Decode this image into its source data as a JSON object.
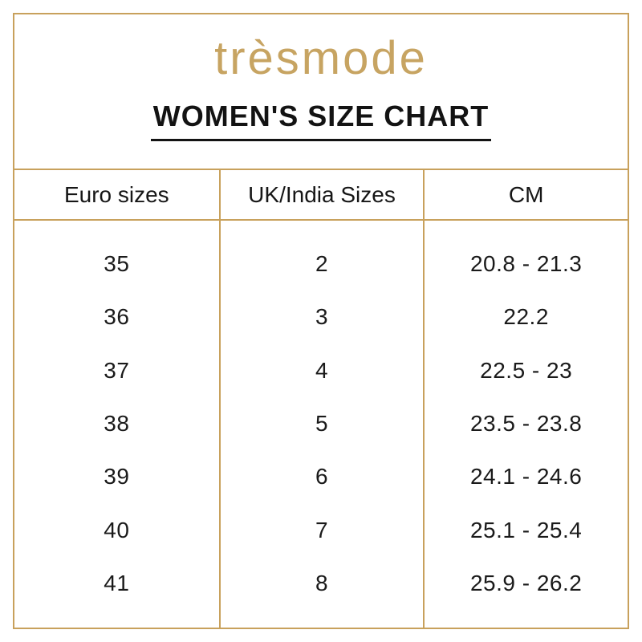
{
  "page": {
    "background_color": "#ffffff",
    "frame_color": "#C8A15C"
  },
  "brand": {
    "logo_text": "trèsmode",
    "logo_color": "#C7A462"
  },
  "header": {
    "title": "WOMEN'S SIZE CHART"
  },
  "table": {
    "columns": [
      "Euro sizes",
      "UK/India Sizes",
      "CM"
    ],
    "rows": [
      [
        "35",
        "2",
        "20.8 - 21.3"
      ],
      [
        "36",
        "3",
        "22.2"
      ],
      [
        "37",
        "4",
        "22.5 - 23"
      ],
      [
        "38",
        "5",
        "23.5 - 23.8"
      ],
      [
        "39",
        "6",
        "24.1 - 24.6"
      ],
      [
        "40",
        "7",
        "25.1 - 25.4"
      ],
      [
        "41",
        "8",
        "25.9 - 26.2"
      ]
    ]
  }
}
